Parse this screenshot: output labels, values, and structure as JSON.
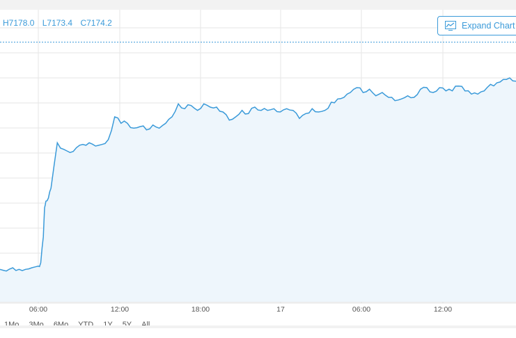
{
  "ohlc": {
    "high": "H7178.0",
    "low": "L7173.4",
    "close": "C7174.2"
  },
  "toolbar": {
    "expand_label": "Expand Chart"
  },
  "range_buttons": [
    "1Mo",
    "3Mo",
    "6Mo",
    "YTD",
    "1Y",
    "5Y",
    "All"
  ],
  "colors": {
    "line": "#3a9ad9",
    "fill": "#eef6fc",
    "grid": "#e6e6e6",
    "reference": "#3a9ad9"
  },
  "chart_data": {
    "type": "area",
    "x_ticks": [
      "06:00",
      "12:00",
      "18:00",
      "17",
      "06:00",
      "12:00"
    ],
    "x": [
      0,
      0.5,
      1,
      1.5,
      2,
      2.5,
      3,
      3.2,
      3.4,
      3.5,
      3.6,
      3.8,
      4,
      4.5,
      5,
      5.5,
      6,
      6.5,
      7,
      7.5,
      8,
      8.5,
      9,
      9.5,
      10,
      10.5,
      11,
      11.5,
      12,
      12.5,
      13,
      13.5,
      14,
      14.5,
      15,
      15.5,
      16,
      16.5,
      17,
      17.5,
      18,
      18.5,
      19,
      19.5,
      20,
      20.5,
      21,
      21.5,
      22,
      22.5,
      23,
      23.5,
      24,
      24.5,
      25,
      25.5,
      26,
      26.5,
      27,
      27.5,
      28,
      28.5,
      29,
      29.5,
      30,
      30.5,
      31,
      31.5,
      32,
      32.5,
      33,
      33.5,
      34,
      34.5,
      35,
      35.5,
      36,
      36.5,
      37,
      37.5,
      38,
      38.5,
      39,
      39.5,
      40,
      40.5
    ],
    "values": [
      7120,
      7119,
      7121,
      7120,
      7120,
      7121,
      7122,
      7124,
      7140,
      7158,
      7162,
      7164,
      7170,
      7198,
      7194,
      7192,
      7195,
      7197,
      7198,
      7196,
      7197,
      7200,
      7214,
      7210,
      7210,
      7207,
      7208,
      7206,
      7209,
      7207,
      7210,
      7214,
      7222,
      7219,
      7221,
      7218,
      7222,
      7220,
      7220,
      7217,
      7212,
      7214,
      7218,
      7216,
      7220,
      7218,
      7218,
      7219,
      7217,
      7219,
      7218,
      7213,
      7216,
      7219,
      7217,
      7218,
      7223,
      7225,
      7226,
      7229,
      7232,
      7229,
      7231,
      7227,
      7229,
      7226,
      7224,
      7225,
      7227,
      7226,
      7231,
      7232,
      7229,
      7232,
      7230,
      7230,
      7233,
      7230,
      7228,
      7228,
      7230,
      7234,
      7235,
      7237,
      7238,
      7236
    ],
    "reference_value": 7260,
    "ylim": [
      7100,
      7280
    ],
    "grid": true
  }
}
